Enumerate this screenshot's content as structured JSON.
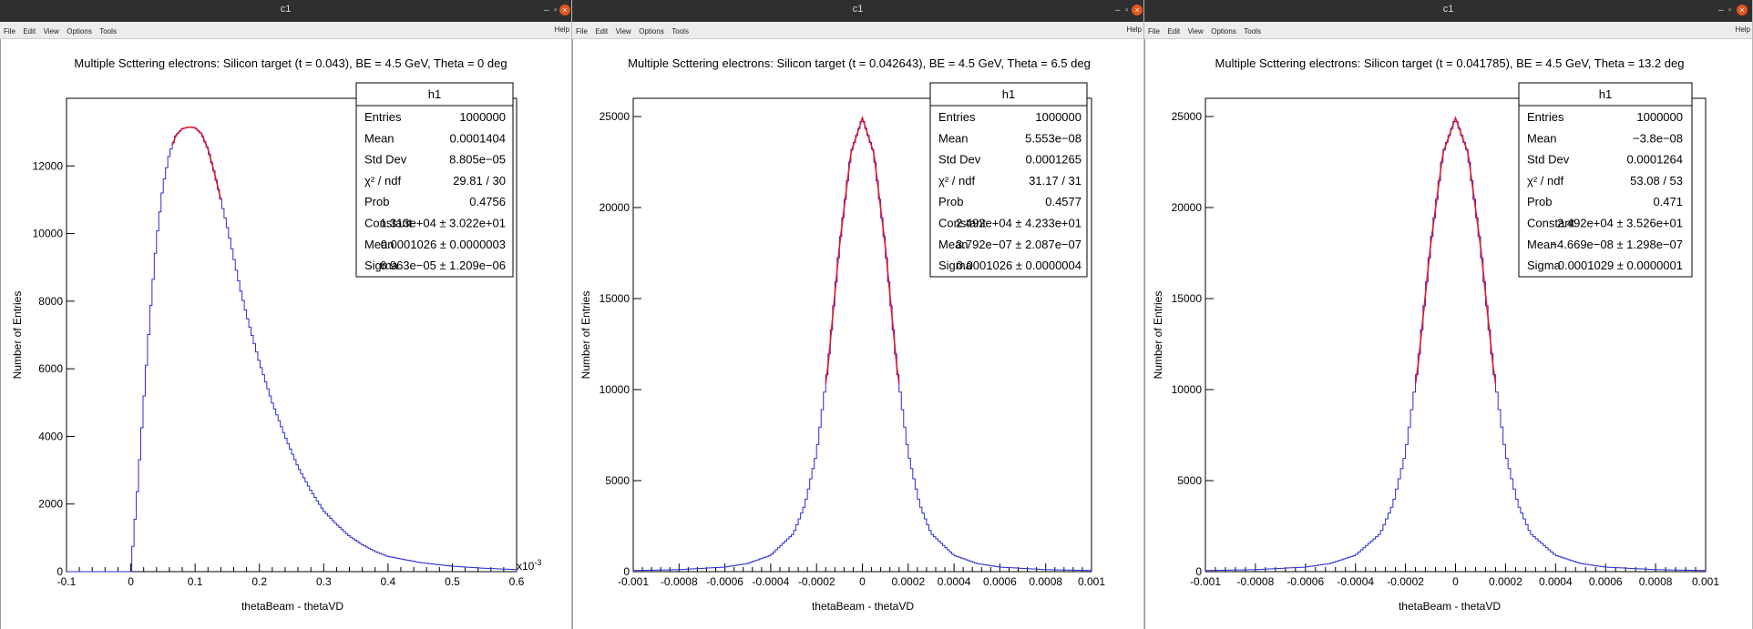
{
  "windows": [
    {
      "title": "c1",
      "menu": [
        "File",
        "Edit",
        "View",
        "Options",
        "Tools"
      ],
      "help": "Help",
      "chart_data": {
        "type": "line",
        "title": "Multiple Scttering electrons: Silicon target (t = 0.043), BE = 4.5 GeV, Theta = 0 deg",
        "xlabel": "thetaBeam - thetaVD",
        "ylabel": "Number of Entries",
        "x_multiplier": "x10^-3",
        "xlim": [
          -0.1,
          0.6
        ],
        "ylim": [
          0,
          14000
        ],
        "xticks": [
          "-0.1",
          "0",
          "0.1",
          "0.2",
          "0.3",
          "0.4",
          "0.5",
          "0.6"
        ],
        "yticks": [
          "0",
          "2000",
          "4000",
          "6000",
          "8000",
          "10000",
          "12000"
        ],
        "hist_color": "#2b2bd9",
        "fit_color": "#e01b2e",
        "fit_range": [
          0.065,
          0.14
        ],
        "series": [
          {
            "x": [
              -0.1,
              0.0,
              0.01,
              0.02,
              0.03,
              0.04,
              0.05,
              0.06,
              0.07,
              0.08,
              0.09,
              0.1,
              0.11,
              0.12,
              0.13,
              0.14,
              0.15,
              0.16,
              0.17,
              0.18,
              0.2,
              0.22,
              0.24,
              0.26,
              0.28,
              0.3,
              0.32,
              0.34,
              0.36,
              0.38,
              0.4,
              0.45,
              0.5,
              0.55,
              0.6
            ],
            "y": [
              0,
              0,
              2300,
              5000,
              7600,
              9800,
              11400,
              12350,
              12900,
              13100,
              13150,
              13130,
              12950,
              12500,
              11800,
              11000,
              10200,
              9300,
              8400,
              7600,
              6200,
              5000,
              4000,
              3100,
              2400,
              1800,
              1400,
              1050,
              800,
              600,
              450,
              270,
              160,
              100,
              60
            ]
          }
        ],
        "stats": {
          "name": "h1",
          "rows": [
            [
              "Entries",
              "1000000"
            ],
            [
              "Mean",
              "0.0001404"
            ],
            [
              "Std Dev",
              "8.805e−05"
            ],
            [
              "χ² / ndf",
              "29.81 / 30"
            ],
            [
              "Prob",
              "0.4756"
            ],
            [
              "Constant",
              "1.313e+04 ± 3.022e+01"
            ],
            [
              "Mean",
              "0.0001026 ± 0.0000003"
            ],
            [
              "Sigma",
              "6.963e−05 ± 1.209e−06"
            ]
          ]
        }
      }
    },
    {
      "title": "c1",
      "menu": [
        "File",
        "Edit",
        "View",
        "Options",
        "Tools"
      ],
      "help": "Help",
      "chart_data": {
        "type": "line",
        "title": "Multiple Scttering electrons: Silicon target (t = 0.042643), BE = 4.5 GeV, Theta = 6.5 deg",
        "xlabel": "thetaBeam - thetaVD",
        "ylabel": "Number of Entries",
        "xlim": [
          -0.001,
          0.001
        ],
        "ylim": [
          0,
          26000
        ],
        "xticks": [
          "-0.001",
          "-0.0008",
          "-0.0006",
          "-0.0004",
          "-0.0002",
          "0",
          "0.0002",
          "0.0004",
          "0.0006",
          "0.0008",
          "0.001"
        ],
        "yticks": [
          "0",
          "5000",
          "10000",
          "15000",
          "20000",
          "25000"
        ],
        "hist_color": "#2b2bd9",
        "fit_color": "#e01b2e",
        "fit_range": [
          -0.00016,
          0.00016
        ],
        "series": [
          {
            "x": [
              -0.001,
              -0.0008,
              -0.0006,
              -0.0005,
              -0.0004,
              -0.0003,
              -0.00025,
              -0.0002,
              -0.00015,
              -0.0001,
              -5e-05,
              0,
              5e-05,
              0.0001,
              0.00015,
              0.0002,
              0.00025,
              0.0003,
              0.0004,
              0.0005,
              0.0006,
              0.0008,
              0.001
            ],
            "y": [
              60,
              110,
              250,
              450,
              900,
              2100,
              3700,
              6500,
              11300,
              17900,
              23000,
              24920,
              23000,
              17900,
              11300,
              6500,
              3700,
              2100,
              900,
              450,
              250,
              110,
              60
            ]
          }
        ],
        "stats": {
          "name": "h1",
          "rows": [
            [
              "Entries",
              "1000000"
            ],
            [
              "Mean",
              "5.553e−08"
            ],
            [
              "Std Dev",
              "0.0001265"
            ],
            [
              "χ² / ndf",
              "31.17 / 31"
            ],
            [
              "Prob",
              "0.4577"
            ],
            [
              "Constant",
              "2.492e+04 ± 4.233e+01"
            ],
            [
              "Mean",
              "3.792e−07 ± 2.087e−07"
            ],
            [
              "Sigma",
              "0.0001026 ± 0.0000004"
            ]
          ]
        }
      }
    },
    {
      "title": "c1",
      "menu": [
        "File",
        "Edit",
        "View",
        "Options",
        "Tools"
      ],
      "help": "Help",
      "chart_data": {
        "type": "line",
        "title": "Multiple Scttering electrons: Silicon target (t = 0.041785), BE = 4.5 GeV, Theta = 13.2 deg",
        "xlabel": "thetaBeam - thetaVD",
        "ylabel": "Number of Entries",
        "xlim": [
          -0.001,
          0.001
        ],
        "ylim": [
          0,
          26000
        ],
        "xticks": [
          "-0.001",
          "-0.0008",
          "-0.0006",
          "-0.0004",
          "-0.0002",
          "0",
          "0.0002",
          "0.0004",
          "0.0006",
          "0.0008",
          "0.001"
        ],
        "yticks": [
          "0",
          "5000",
          "10000",
          "15000",
          "20000",
          "25000"
        ],
        "hist_color": "#2b2bd9",
        "fit_color": "#e01b2e",
        "fit_range": [
          -0.00016,
          0.00016
        ],
        "series": [
          {
            "x": [
              -0.001,
              -0.0008,
              -0.0006,
              -0.0005,
              -0.0004,
              -0.0003,
              -0.00025,
              -0.0002,
              -0.00015,
              -0.0001,
              -5e-05,
              0,
              5e-05,
              0.0001,
              0.00015,
              0.0002,
              0.00025,
              0.0003,
              0.0004,
              0.0005,
              0.0006,
              0.0008,
              0.001
            ],
            "y": [
              60,
              110,
              250,
              450,
              900,
              2100,
              3700,
              6500,
              11300,
              17900,
              23000,
              24920,
              23000,
              17900,
              11300,
              6500,
              3700,
              2100,
              900,
              450,
              250,
              110,
              60
            ]
          }
        ],
        "stats": {
          "name": "h1",
          "rows": [
            [
              "Entries",
              "1000000"
            ],
            [
              "Mean",
              "−3.8e−08"
            ],
            [
              "Std Dev",
              "0.0001264"
            ],
            [
              "χ² / ndf",
              "53.08 / 53"
            ],
            [
              "Prob",
              "0.471"
            ],
            [
              "Constant",
              "2.492e+04 ± 3.526e+01"
            ],
            [
              "Mean",
              "−4.669e−08 ± 1.298e−07"
            ],
            [
              "Sigma",
              "0.0001029 ± 0.0000001"
            ]
          ]
        }
      }
    }
  ]
}
